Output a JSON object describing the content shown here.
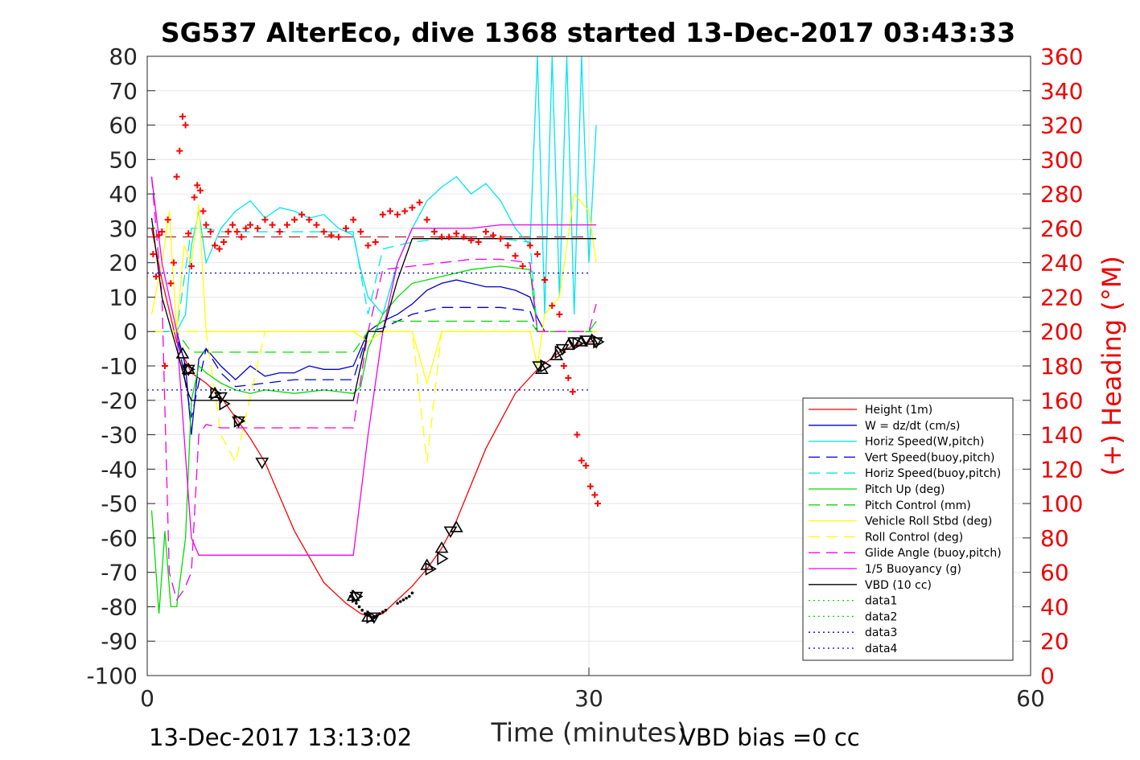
{
  "chart_data": {
    "type": "line",
    "title": "SG537 AlterEco, dive 1368 started 13-Dec-2017 03:43:33",
    "xlabel": "Time (minutes)",
    "ylabel_right": "(+) Heading (°M)",
    "footer_left": "13-Dec-2017 13:13:02",
    "footer_right": "VBD bias =0 cc",
    "xlim": [
      0,
      60
    ],
    "xticks": [
      0,
      30,
      60
    ],
    "ylim": [
      -100,
      80
    ],
    "yticks": [
      -100,
      -90,
      -80,
      -70,
      -60,
      -50,
      -40,
      -30,
      -20,
      -10,
      0,
      10,
      20,
      30,
      40,
      50,
      60,
      70,
      80
    ],
    "y2lim": [
      0,
      360
    ],
    "y2ticks": [
      0,
      20,
      40,
      60,
      80,
      100,
      120,
      140,
      160,
      180,
      200,
      220,
      240,
      260,
      280,
      300,
      320,
      340,
      360
    ],
    "grid": true,
    "legend_position": "bottom-right",
    "colors": {
      "height": "#ff0000",
      "w": "#0000cc",
      "horiz_speed": "#00e5ee",
      "vert_speed_buoy": "#0000cc",
      "horiz_speed_buoy": "#00e5ee",
      "pitch_up": "#00dd00",
      "pitch_control": "#00dd00",
      "roll": "#ffff00",
      "roll_control": "#ffff00",
      "glide_angle": "#ee00ee",
      "buoyancy": "#ee00ee",
      "vbd": "#000000",
      "heading": "#ff0000"
    },
    "series": [
      {
        "name": "Height (1m)",
        "key": "height",
        "style": "solid",
        "x": [
          0.3,
          1,
          2,
          3,
          4,
          5,
          6,
          7,
          8,
          10,
          12,
          13.5,
          14.5,
          15.2,
          16,
          17,
          18,
          19,
          20,
          21,
          23,
          25,
          26.5,
          28,
          29,
          30,
          30.5
        ],
        "y": [
          30,
          15,
          -3,
          -12,
          -15,
          -19,
          -25,
          -31,
          -38,
          -58,
          -73,
          -79,
          -82,
          -83,
          -82,
          -78,
          -74,
          -69,
          -63,
          -55,
          -34,
          -18,
          -11,
          -6,
          -4,
          -3,
          -3
        ]
      },
      {
        "name": "W = dz/dt (cm/s)",
        "key": "w",
        "style": "solid",
        "x": [
          0.3,
          1,
          2,
          2.6,
          3,
          3.5,
          4,
          5,
          6,
          7,
          8,
          9,
          10,
          11,
          12,
          13,
          14,
          15,
          16,
          17,
          18,
          19,
          20,
          21,
          22,
          23,
          24,
          25,
          26,
          26.5,
          27,
          28,
          29,
          30,
          30.5
        ],
        "y": [
          0,
          0,
          0,
          -10,
          -30,
          -8,
          -5,
          -10,
          -14,
          -10,
          -13,
          -12,
          -12,
          -10,
          -11,
          -11,
          -10,
          0,
          3,
          5,
          8,
          12,
          14,
          15,
          14,
          13,
          13,
          12,
          10,
          4,
          0,
          0,
          0,
          0,
          0
        ]
      },
      {
        "name": "Horiz Speed(W,pitch)",
        "key": "horiz_speed",
        "style": "solid",
        "x": [
          0.3,
          1,
          2,
          2.6,
          3,
          3.5,
          4,
          5,
          6,
          7,
          8,
          9,
          10,
          11,
          12,
          13,
          14,
          14.5,
          15,
          16,
          17,
          18,
          19,
          20,
          21,
          22,
          23,
          24,
          25,
          26,
          26.5,
          27,
          27.5,
          28,
          28.5,
          29,
          29.5,
          30,
          30.5
        ],
        "y": [
          0,
          0,
          0,
          5,
          25,
          35,
          20,
          30,
          35,
          38,
          33,
          36,
          35,
          33,
          34,
          30,
          28,
          18,
          10,
          5,
          20,
          30,
          38,
          42,
          45,
          40,
          43,
          38,
          30,
          25,
          80,
          5,
          80,
          10,
          80,
          5,
          80,
          20,
          60
        ]
      },
      {
        "name": "Vert Speed(buoy,pitch)",
        "key": "vert_speed_buoy",
        "style": "dashed",
        "x": [
          0.3,
          1,
          2,
          3,
          4,
          5,
          6,
          8,
          10,
          12,
          14,
          15,
          16,
          17,
          18,
          20,
          22,
          24,
          26,
          26.5,
          27,
          28,
          29,
          30,
          30.5
        ],
        "y": [
          0,
          0,
          0,
          -25,
          -5,
          -12,
          -16,
          -15,
          -14,
          -14,
          -14,
          0,
          1,
          3,
          5,
          7,
          7,
          7,
          6,
          0,
          0,
          0,
          0,
          0,
          0
        ]
      },
      {
        "name": "Horiz Speed(buoy,pitch)",
        "key": "horiz_speed_buoy",
        "style": "dashed",
        "x": [
          0.3,
          1,
          2,
          3,
          4,
          5,
          6,
          8,
          10,
          12,
          14,
          15,
          16,
          18,
          20,
          22,
          24,
          26,
          26.5,
          27,
          28,
          29,
          30,
          30.5
        ],
        "y": [
          0,
          0,
          0,
          30,
          30,
          29,
          29,
          29,
          29,
          29,
          29,
          5,
          24,
          26,
          27,
          27,
          27,
          26,
          0,
          0,
          0,
          0,
          0,
          0
        ]
      },
      {
        "name": "Pitch Up (deg)",
        "key": "pitch_up",
        "style": "solid",
        "x": [
          0.3,
          0.8,
          1.2,
          1.6,
          2,
          2.6,
          3,
          3.5,
          4,
          5,
          6,
          7,
          8,
          10,
          12,
          14,
          14.5,
          15,
          16,
          17,
          18,
          20,
          22,
          24,
          26,
          26.5,
          27,
          28,
          29,
          30,
          30.5
        ],
        "y": [
          -52,
          -82,
          -58,
          -80,
          -80,
          -60,
          -20,
          -10,
          -12,
          -15,
          -17,
          -18,
          -17,
          -18,
          -17,
          -18,
          -16,
          -5,
          5,
          10,
          14,
          16,
          18,
          19,
          18,
          0,
          0,
          0,
          0,
          0,
          3
        ]
      },
      {
        "name": "Pitch Control (mm)",
        "key": "pitch_control",
        "style": "dashed",
        "x": [
          0.3,
          1,
          2,
          3,
          4,
          5,
          6,
          8,
          10,
          12,
          14,
          15,
          16,
          17,
          18,
          20,
          22,
          24,
          26,
          26.5,
          27,
          28,
          29,
          30,
          30.5
        ],
        "y": [
          0,
          0,
          0,
          -6,
          -6,
          -6,
          -6,
          -6,
          -6,
          -6,
          -6,
          0,
          3,
          3,
          3,
          3,
          3,
          3,
          3,
          0,
          0,
          0,
          0,
          0,
          0
        ]
      },
      {
        "name": "Vehicle Roll Stbd (deg)",
        "key": "roll",
        "style": "solid",
        "x": [
          0.3,
          1,
          1.5,
          2,
          2.5,
          3,
          3.5,
          4,
          5,
          6,
          8,
          10,
          12,
          14,
          15,
          16,
          18,
          19,
          20,
          22,
          24,
          26,
          26.5,
          27,
          28,
          29,
          30,
          30.5
        ],
        "y": [
          5,
          20,
          35,
          0,
          25,
          20,
          37,
          0,
          0,
          0,
          0,
          0,
          0,
          0,
          -3,
          0,
          0,
          -15,
          0,
          0,
          0,
          0,
          -10,
          5,
          10,
          40,
          35,
          20
        ]
      },
      {
        "name": "Roll Control (deg)",
        "key": "roll_control",
        "style": "dashed",
        "x": [
          0.3,
          1,
          2,
          3,
          4,
          5,
          6,
          8,
          10,
          12,
          14,
          15,
          16,
          18,
          19,
          20,
          22,
          24,
          26,
          26.5,
          27,
          28,
          29,
          30,
          30.5
        ],
        "y": [
          0,
          0,
          0,
          0,
          0,
          -30,
          -38,
          0,
          0,
          0,
          0,
          0,
          0,
          0,
          -38,
          0,
          0,
          0,
          0,
          0,
          0,
          0,
          0,
          0,
          0
        ]
      },
      {
        "name": "Glide Angle (buoy,pitch)",
        "key": "glide_angle",
        "style": "dashed",
        "x": [
          0.3,
          1,
          1.5,
          2,
          2.5,
          3,
          3.5,
          4,
          5,
          6,
          8,
          10,
          12,
          14,
          15,
          16,
          18,
          20,
          22,
          24,
          26,
          26.5,
          27,
          28,
          29,
          30,
          30.5
        ],
        "y": [
          45,
          10,
          -70,
          -78,
          -75,
          -70,
          -30,
          -27,
          -28,
          -28,
          -28,
          -28,
          -28,
          -28,
          0,
          18,
          19,
          20,
          21,
          21,
          20,
          0,
          0,
          0,
          0,
          0,
          8
        ]
      },
      {
        "name": "1/5 Buoyancy (g)",
        "key": "buoyancy",
        "style": "solid",
        "x": [
          0.3,
          1,
          2,
          3,
          3.5,
          4,
          8,
          12,
          14,
          15,
          16,
          17,
          18,
          20,
          22,
          24,
          26,
          28,
          30,
          30.5
        ],
        "y": [
          45,
          20,
          0,
          -60,
          -65,
          -65,
          -65,
          -65,
          -65,
          -30,
          0,
          20,
          30,
          30,
          30,
          31,
          31,
          31,
          31,
          31
        ]
      },
      {
        "name": "VBD (10 cc)",
        "key": "vbd",
        "style": "solid",
        "x": [
          0.3,
          1,
          2,
          2.8,
          3,
          4,
          8,
          12,
          14,
          15,
          16,
          17,
          18,
          19,
          20,
          22,
          24,
          26,
          28,
          30,
          30.5
        ],
        "y": [
          33,
          10,
          -5,
          -18,
          -20,
          -20,
          -20,
          -20,
          -20,
          0,
          0,
          15,
          27,
          27,
          27,
          27,
          27,
          27,
          27,
          27,
          27
        ]
      },
      {
        "name": "data1",
        "key": "data1",
        "style": "dotted",
        "color": "#00dd00",
        "x": [],
        "y": []
      },
      {
        "name": "data2",
        "key": "data2",
        "style": "dotted",
        "color": "#00dd00",
        "x": [],
        "y": []
      },
      {
        "name": "data3",
        "key": "data3",
        "style": "dotted",
        "color": "#0000cc",
        "x": [
          0,
          30
        ],
        "y": [
          17,
          17
        ]
      },
      {
        "name": "data4",
        "key": "data4",
        "style": "dotted",
        "color": "#0000cc",
        "x": [
          0,
          30
        ],
        "y": [
          -17,
          -17
        ]
      }
    ],
    "heading_reference": {
      "x": [
        0,
        30
      ],
      "y2": [
        255,
        255
      ]
    },
    "heading_points": {
      "axis": "right",
      "x": [
        0.4,
        0.6,
        0.8,
        1,
        1.2,
        1.4,
        1.6,
        1.8,
        2,
        2.2,
        2.4,
        2.6,
        2.8,
        3,
        3.2,
        3.4,
        3.6,
        3.8,
        4,
        4.3,
        4.6,
        4.9,
        5.2,
        5.5,
        5.8,
        6.1,
        6.4,
        6.7,
        7,
        7.5,
        8,
        8.5,
        9,
        9.5,
        10,
        10.5,
        11,
        11.5,
        12,
        12.5,
        13,
        13.5,
        14,
        14.5,
        15,
        15.5,
        16,
        16.5,
        17,
        17.5,
        18,
        18.5,
        19,
        19.5,
        20,
        20.5,
        21,
        21.5,
        22,
        22.5,
        23,
        23.5,
        24,
        24.5,
        25,
        25.5,
        26,
        26.5,
        27,
        27.5,
        28,
        28.3,
        28.6,
        28.9,
        29.2,
        29.5,
        29.8,
        30.1,
        30.4,
        30.6
      ],
      "y2": [
        245,
        232,
        256,
        258,
        180,
        265,
        228,
        240,
        290,
        305,
        325,
        320,
        257,
        238,
        278,
        285,
        282,
        270,
        262,
        258,
        250,
        248,
        252,
        258,
        262,
        258,
        255,
        260,
        262,
        260,
        265,
        262,
        258,
        262,
        265,
        268,
        265,
        262,
        258,
        256,
        255,
        260,
        265,
        258,
        250,
        252,
        268,
        270,
        268,
        270,
        272,
        275,
        265,
        258,
        255,
        255,
        257,
        255,
        253,
        252,
        258,
        256,
        254,
        250,
        244,
        238,
        250,
        245,
        230,
        215,
        210,
        180,
        173,
        165,
        140,
        125,
        122,
        110,
        105,
        100
      ]
    },
    "markers": {
      "up_triangles": {
        "x": [
          2.4,
          2.8,
          4.6,
          14,
          15,
          19,
          20,
          21,
          26.8,
          27.8,
          28.6,
          29.5,
          30.2
        ],
        "y": [
          -6.5,
          -11,
          -18,
          -77,
          -83,
          -68,
          -63,
          -57,
          -11,
          -7,
          -4,
          -3,
          -2.5
        ]
      },
      "down_triangles": {
        "x": [
          2.8,
          5,
          6.2,
          7.8,
          14.2,
          15.4,
          20.6,
          26.6,
          28.2,
          29,
          29.8,
          30.5
        ],
        "y": [
          -11,
          -19,
          -26,
          -38,
          -77,
          -83,
          -58,
          -10,
          -5,
          -3,
          -2.5,
          -3
        ]
      },
      "right_triangles": {
        "x": [
          2.8,
          4.6,
          5.2,
          6.2,
          14.2,
          15.2,
          19.2,
          20,
          27,
          28,
          29.2,
          30.6
        ],
        "y": [
          -11,
          -18,
          -21,
          -26,
          -77,
          -83,
          -69,
          -66,
          -10,
          -6,
          -3.5,
          -3
        ]
      },
      "dots_x": [
        13.8,
        14,
        14.2,
        14.4,
        14.6,
        14.8,
        15,
        15.2,
        15.4,
        15.6,
        15.8,
        16,
        16.2,
        17,
        17.2,
        17.4,
        17.6,
        17.8,
        18
      ],
      "dots_y": [
        -77,
        -78,
        -79,
        -80,
        -81,
        -82,
        -82.5,
        -83,
        -83,
        -82.5,
        -82,
        -81.5,
        -81,
        -79,
        -78.5,
        -78,
        -77.5,
        -77,
        -76
      ]
    }
  }
}
